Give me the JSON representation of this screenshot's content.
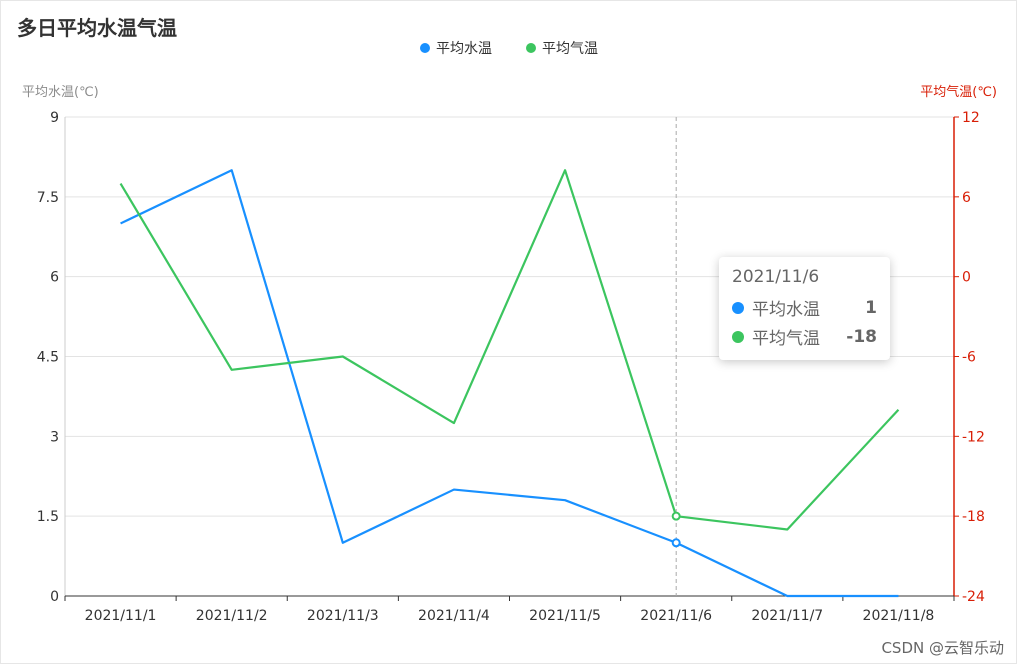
{
  "chart_data": {
    "type": "line",
    "title": "多日平均水温气温",
    "categories": [
      "2021/11/1",
      "2021/11/2",
      "2021/11/3",
      "2021/11/4",
      "2021/11/5",
      "2021/11/6",
      "2021/11/7",
      "2021/11/8"
    ],
    "series": [
      {
        "name": "平均水温",
        "axis": "left",
        "color": "#1890ff",
        "values": [
          7,
          8,
          1,
          2,
          1.8,
          1,
          0,
          0
        ]
      },
      {
        "name": "平均气温",
        "axis": "right",
        "color": "#3cc55f",
        "values": [
          7,
          -7,
          -6,
          -11,
          8,
          -18,
          -19,
          -10
        ]
      }
    ],
    "y_left": {
      "label": "平均水温(℃)",
      "min": 0,
      "max": 9,
      "ticks": [
        "0",
        "1.5",
        "3",
        "4.5",
        "6",
        "7.5",
        "9"
      ]
    },
    "y_right": {
      "label": "平均气温(℃)",
      "min": -24,
      "max": 12,
      "ticks": [
        "-24",
        "-18",
        "-12",
        "-6",
        "0",
        "6",
        "12"
      ],
      "color": "#d81e06"
    },
    "highlight_index": 5,
    "grid": true,
    "legend_position": "top-center"
  },
  "tooltip": {
    "title": "2021/11/6",
    "rows": [
      {
        "name": "平均水温",
        "value": "1",
        "color": "#1890ff"
      },
      {
        "name": "平均气温",
        "value": "-18",
        "color": "#3cc55f"
      }
    ]
  },
  "watermark": "CSDN @云智乐动"
}
